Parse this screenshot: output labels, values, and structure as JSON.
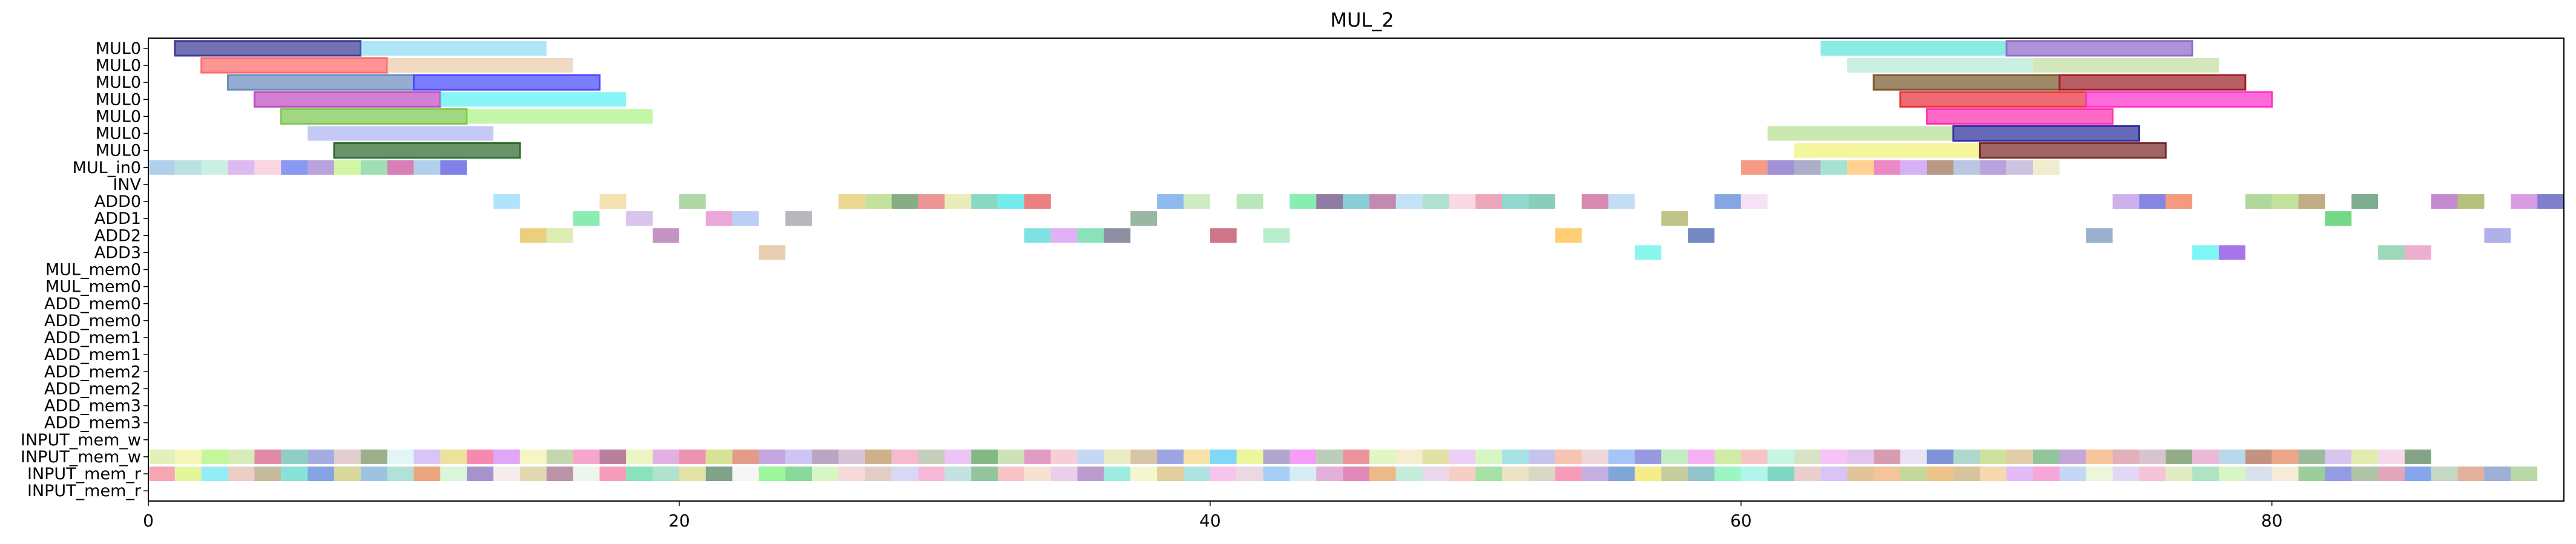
{
  "chart_data": {
    "type": "gantt",
    "title": "MUL_2",
    "xlim": [
      0,
      91
    ],
    "xticks": [
      0,
      20,
      40,
      60,
      80
    ],
    "rows": [
      "MUL0",
      "MUL0",
      "MUL0",
      "MUL0",
      "MUL0",
      "MUL0",
      "MUL0",
      "MUL_in0",
      "INV",
      "ADD0",
      "ADD1",
      "ADD2",
      "ADD3",
      "MUL_mem0",
      "MUL_mem0",
      "ADD_mem0",
      "ADD_mem0",
      "ADD_mem1",
      "ADD_mem1",
      "ADD_mem2",
      "ADD_mem2",
      "ADD_mem3",
      "ADD_mem3",
      "INPUT_mem_w",
      "INPUT_mem_w",
      "INPUT_mem_r",
      "INPUT_mem_r"
    ],
    "palette": [
      "#7fb3e0",
      "#a8e6cf",
      "#f4a6c1",
      "#ffd27f",
      "#b39ddb",
      "#80cbc4",
      "#e57373",
      "#aed581",
      "#90a4ae",
      "#ce93d8",
      "#ffab91",
      "#81d4fa",
      "#c5e1a5",
      "#f48fb1",
      "#9fa8da",
      "#dce775",
      "#4db6ac",
      "#ba68c8",
      "#ffcc80",
      "#a1887f"
    ],
    "bars": [
      {
        "row": 0,
        "start": 1,
        "end": 8,
        "color": "#3b3b98",
        "border": true
      },
      {
        "row": 0,
        "start": 8,
        "end": 15,
        "color": "#7ed6f0"
      },
      {
        "row": 0,
        "start": 63,
        "end": 70,
        "color": "#3fe0d0"
      },
      {
        "row": 0,
        "start": 70,
        "end": 77,
        "color": "#8e6bc9",
        "border": true
      },
      {
        "row": 1,
        "start": 2,
        "end": 9,
        "color": "#ff6b6b",
        "border": true
      },
      {
        "row": 1,
        "start": 9,
        "end": 16,
        "color": "#e8c39e"
      },
      {
        "row": 1,
        "start": 64,
        "end": 71,
        "color": "#a8e6cf"
      },
      {
        "row": 1,
        "start": 71,
        "end": 78,
        "color": "#b8d98f"
      },
      {
        "row": 2,
        "start": 3,
        "end": 10,
        "color": "#6c8ebf",
        "border": true
      },
      {
        "row": 2,
        "start": 10,
        "end": 17,
        "color": "#4b4bff",
        "border": true
      },
      {
        "row": 2,
        "start": 65,
        "end": 72,
        "color": "#7a5c2e",
        "border": true
      },
      {
        "row": 2,
        "start": 72,
        "end": 79,
        "color": "#a0202a",
        "border": true
      },
      {
        "row": 3,
        "start": 4,
        "end": 11,
        "color": "#c04fc0",
        "border": true
      },
      {
        "row": 3,
        "start": 11,
        "end": 18,
        "color": "#3ff0f0"
      },
      {
        "row": 3,
        "start": 66,
        "end": 73,
        "color": "#e8333a",
        "border": true
      },
      {
        "row": 3,
        "start": 73,
        "end": 80,
        "color": "#ff33cc",
        "border": true
      },
      {
        "row": 4,
        "start": 5,
        "end": 12,
        "color": "#7ec850",
        "border": true
      },
      {
        "row": 4,
        "start": 12,
        "end": 19,
        "color": "#9ef070"
      },
      {
        "row": 4,
        "start": 67,
        "end": 74,
        "color": "#ff2fb0",
        "border": true
      },
      {
        "row": 5,
        "start": 6,
        "end": 13,
        "color": "#a3a8f0"
      },
      {
        "row": 5,
        "start": 61,
        "end": 68,
        "color": "#a8dc80"
      },
      {
        "row": 5,
        "start": 68,
        "end": 75,
        "color": "#2e2e9e",
        "border": true
      },
      {
        "row": 6,
        "start": 7,
        "end": 14,
        "color": "#2e6b2e",
        "border": true
      },
      {
        "row": 6,
        "start": 62,
        "end": 69,
        "color": "#eef060"
      },
      {
        "row": 6,
        "start": 69,
        "end": 76,
        "color": "#7a2a2a",
        "border": true
      },
      {
        "row": 7,
        "start": 0,
        "end": 1,
        "color": "#7fb3e0"
      },
      {
        "row": 7,
        "start": 1,
        "end": 2,
        "color": "#8fd0d0"
      },
      {
        "row": 7,
        "start": 2,
        "end": 3,
        "color": "#a8e6cf"
      },
      {
        "row": 7,
        "start": 3,
        "end": 4,
        "color": "#c890e8"
      },
      {
        "row": 7,
        "start": 4,
        "end": 5,
        "color": "#f8bbd0"
      },
      {
        "row": 7,
        "start": 5,
        "end": 6,
        "color": "#3f5be8"
      },
      {
        "row": 7,
        "start": 6,
        "end": 7,
        "color": "#8e6bc9"
      },
      {
        "row": 7,
        "start": 7,
        "end": 8,
        "color": "#b8f070"
      },
      {
        "row": 7,
        "start": 8,
        "end": 9,
        "color": "#66cc88"
      },
      {
        "row": 7,
        "start": 9,
        "end": 10,
        "color": "#c0308a"
      },
      {
        "row": 7,
        "start": 10,
        "end": 11,
        "color": "#7fb3e0"
      },
      {
        "row": 7,
        "start": 11,
        "end": 12,
        "color": "#3333dd"
      },
      {
        "row": 7,
        "start": 60,
        "end": 61,
        "color": "#f0603a"
      },
      {
        "row": 7,
        "start": 61,
        "end": 62,
        "color": "#6a4ec0"
      },
      {
        "row": 7,
        "start": 62,
        "end": 63,
        "color": "#7a7aaa"
      },
      {
        "row": 7,
        "start": 63,
        "end": 64,
        "color": "#6fd0b8"
      },
      {
        "row": 7,
        "start": 64,
        "end": 65,
        "color": "#ffb74d"
      },
      {
        "row": 7,
        "start": 65,
        "end": 66,
        "color": "#e040a0"
      },
      {
        "row": 7,
        "start": 66,
        "end": 67,
        "color": "#c080f0"
      },
      {
        "row": 7,
        "start": 67,
        "end": 68,
        "color": "#8b5a3c"
      },
      {
        "row": 7,
        "start": 68,
        "end": 69,
        "color": "#90a4d0"
      },
      {
        "row": 7,
        "start": 69,
        "end": 70,
        "color": "#8e6bc9"
      },
      {
        "row": 7,
        "start": 70,
        "end": 71,
        "color": "#b0a0d0"
      },
      {
        "row": 7,
        "start": 71,
        "end": 72,
        "color": "#e6e0b0"
      },
      {
        "row": 9,
        "start": 26,
        "end": 27,
        "color": "#e0c050"
      },
      {
        "row": 9,
        "start": 27,
        "end": 28,
        "color": "#a0d060"
      },
      {
        "row": 9,
        "start": 28,
        "end": 29,
        "color": "#3c7a3c"
      },
      {
        "row": 9,
        "start": 29,
        "end": 30,
        "color": "#e05050"
      },
      {
        "row": 9,
        "start": 30,
        "end": 31,
        "color": "#e0e090"
      },
      {
        "row": 9,
        "start": 31,
        "end": 32,
        "color": "#40c0a0"
      },
      {
        "row": 9,
        "start": 32,
        "end": 33,
        "color": "#20e0e0"
      },
      {
        "row": 9,
        "start": 33,
        "end": 34,
        "color": "#e03030"
      },
      {
        "row": 9,
        "start": 13,
        "end": 14,
        "color": "#81d4fa"
      },
      {
        "row": 9,
        "start": 17,
        "end": 18,
        "color": "#ecd080"
      },
      {
        "row": 9,
        "start": 20,
        "end": 21,
        "color": "#7ec070"
      },
      {
        "row": 9,
        "start": 38,
        "end": 39,
        "color": "#4a90e0"
      },
      {
        "row": 9,
        "start": 39,
        "end": 40,
        "color": "#b0e0a0"
      },
      {
        "row": 9,
        "start": 41,
        "end": 42,
        "color": "#90d890"
      },
      {
        "row": 9,
        "start": 43,
        "end": 44,
        "color": "#40e080"
      },
      {
        "row": 9,
        "start": 44,
        "end": 45,
        "color": "#4a2a6a"
      },
      {
        "row": 9,
        "start": 45,
        "end": 46,
        "color": "#40b0c0"
      },
      {
        "row": 9,
        "start": 46,
        "end": 47,
        "color": "#a04080"
      },
      {
        "row": 9,
        "start": 47,
        "end": 48,
        "color": "#a0d0f0"
      },
      {
        "row": 9,
        "start": 48,
        "end": 49,
        "color": "#7ed0b0"
      },
      {
        "row": 9,
        "start": 49,
        "end": 50,
        "color": "#f8c0d0"
      },
      {
        "row": 9,
        "start": 50,
        "end": 51,
        "color": "#e07090"
      },
      {
        "row": 9,
        "start": 51,
        "end": 52,
        "color": "#50c0b0"
      },
      {
        "row": 9,
        "start": 52,
        "end": 53,
        "color": "#40b090"
      },
      {
        "row": 9,
        "start": 54,
        "end": 55,
        "color": "#c04080"
      },
      {
        "row": 9,
        "start": 55,
        "end": 56,
        "color": "#a0c8f0"
      },
      {
        "row": 9,
        "start": 59,
        "end": 60,
        "color": "#3a70d0"
      },
      {
        "row": 9,
        "start": 60,
        "end": 61,
        "color": "#f0d0f0"
      },
      {
        "row": 9,
        "start": 74,
        "end": 75,
        "color": "#b080e0"
      },
      {
        "row": 9,
        "start": 75,
        "end": 76,
        "color": "#3a3ad0"
      },
      {
        "row": 9,
        "start": 76,
        "end": 77,
        "color": "#f05a30"
      },
      {
        "row": 9,
        "start": 79,
        "end": 80,
        "color": "#80c060"
      },
      {
        "row": 9,
        "start": 80,
        "end": 81,
        "color": "#a0d060"
      },
      {
        "row": 9,
        "start": 81,
        "end": 82,
        "color": "#9a7a3a"
      },
      {
        "row": 9,
        "start": 83,
        "end": 84,
        "color": "#2e7a4a"
      },
      {
        "row": 9,
        "start": 86,
        "end": 87,
        "color": "#a040b0"
      },
      {
        "row": 9,
        "start": 87,
        "end": 88,
        "color": "#8a9a30"
      },
      {
        "row": 9,
        "start": 89,
        "end": 90,
        "color": "#c060d0"
      },
      {
        "row": 9,
        "start": 90,
        "end": 91,
        "color": "#3030b0"
      },
      {
        "row": 10,
        "start": 16,
        "end": 17,
        "color": "#40e080"
      },
      {
        "row": 10,
        "start": 18,
        "end": 19,
        "color": "#c0a0e0"
      },
      {
        "row": 10,
        "start": 21,
        "end": 22,
        "color": "#e070c0"
      },
      {
        "row": 10,
        "start": 22,
        "end": 23,
        "color": "#90b0f0"
      },
      {
        "row": 10,
        "start": 24,
        "end": 25,
        "color": "#8a8a9a"
      },
      {
        "row": 10,
        "start": 37,
        "end": 38,
        "color": "#5a8a6a"
      },
      {
        "row": 10,
        "start": 57,
        "end": 58,
        "color": "#9aa040"
      },
      {
        "row": 10,
        "start": 82,
        "end": 83,
        "color": "#20c040"
      },
      {
        "row": 11,
        "start": 14,
        "end": 15,
        "color": "#e0b030"
      },
      {
        "row": 11,
        "start": 15,
        "end": 16,
        "color": "#c8e080"
      },
      {
        "row": 11,
        "start": 19,
        "end": 20,
        "color": "#a050a0"
      },
      {
        "row": 11,
        "start": 33,
        "end": 34,
        "color": "#30d0d0"
      },
      {
        "row": 11,
        "start": 34,
        "end": 35,
        "color": "#d080f0"
      },
      {
        "row": 11,
        "start": 35,
        "end": 36,
        "color": "#40d090"
      },
      {
        "row": 11,
        "start": 36,
        "end": 37,
        "color": "#4a4a6a"
      },
      {
        "row": 11,
        "start": 40,
        "end": 41,
        "color": "#b02040"
      },
      {
        "row": 11,
        "start": 42,
        "end": 43,
        "color": "#90e0b0"
      },
      {
        "row": 11,
        "start": 53,
        "end": 54,
        "color": "#ffb020"
      },
      {
        "row": 11,
        "start": 58,
        "end": 59,
        "color": "#2040a0"
      },
      {
        "row": 11,
        "start": 73,
        "end": 74,
        "color": "#5a80b0"
      },
      {
        "row": 11,
        "start": 88,
        "end": 89,
        "color": "#8080e0"
      },
      {
        "row": 12,
        "start": 23,
        "end": 24,
        "color": "#d8b080"
      },
      {
        "row": 12,
        "start": 56,
        "end": 57,
        "color": "#40f0e0"
      },
      {
        "row": 12,
        "start": 77,
        "end": 78,
        "color": "#30f0f0"
      },
      {
        "row": 12,
        "start": 78,
        "end": 79,
        "color": "#7020e0"
      },
      {
        "row": 12,
        "start": 84,
        "end": 85,
        "color": "#60c090"
      },
      {
        "row": 12,
        "start": 85,
        "end": 86,
        "color": "#e080b0"
      }
    ],
    "input_w_colors": [
      "#d0e890",
      "#f0f090",
      "#a0f060",
      "#c0e090",
      "#d04070",
      "#4ab0a0",
      "#6a7ad0",
      "#d0b0b0",
      "#608040",
      "#d0f0f0",
      "#c0a0f0",
      "#e0d060",
      "#f04080",
      "#d070f0",
      "#f0f0a0",
      "#a0c080",
      "#f070b0",
      "#903060",
      "#e0f0a0",
      "#d080d0",
      "#e05080",
      "#c0d050",
      "#d06040",
      "#a070d0",
      "#b0a0f0",
      "#9070a0",
      "#c0a0c0",
      "#b08040",
      "#f090b0",
      "#a0b090",
      "#e0a0f0",
      "#3a8a3a",
      "#b0d090",
      "#d060a0",
      "#f0b0c0",
      "#a0c0f0",
      "#e0e0a0",
      "#c0a070",
      "#6070d0",
      "#f0d070",
      "#30c0f0",
      "#e0f060",
      "#8070b0",
      "#f060f0",
      "#90b090",
      "#e05060",
      "#d0f0a0",
      "#f0e0b0",
      "#d0d070",
      "#e0b0f0",
      "#c0f0a0",
      "#70d0d0",
      "#a0a0e0",
      "#f0a080",
      "#e0c0c0",
      "#70a0f0",
      "#5a5ad0",
      "#a0e0a0",
      "#f080f0",
      "#b0e070",
      "#f0a0a0",
      "#a0f0d0",
      "#c0d0a0",
      "#f0a0f0",
      "#d0a0e0",
      "#c06080",
      "#e0d0f0",
      "#3050c0",
      "#80c0b0",
      "#b0d060",
      "#d0b070",
      "#50a060",
      "#a070c0",
      "#f0a060",
      "#d08090",
      "#c0a0b0",
      "#507a40",
      "#e090c0",
      "#90c0e0",
      "#a05030",
      "#e07040",
      "#609060",
      "#c0a0e0",
      "#d0e080",
      "#f0c0e0",
      "#3a6a3a"
    ],
    "input_r_colors": [
      "#f07080",
      "#d0f060",
      "#50e0f0",
      "#e0b0a0",
      "#a09060",
      "#40d0c0",
      "#3a6ad0",
      "#c0c060",
      "#60a0d0",
      "#80d0c0",
      "#e07030",
      "#c0f0c0",
      "#7050b0",
      "#f0e0e0",
      "#d0c080",
      "#905070",
      "#e0f0e0",
      "#f06090",
      "#40d090",
      "#80d0b0",
      "#d0d070",
      "#306a40",
      "#f0f0f0",
      "#60f060",
      "#40c060",
      "#c0f0a0",
      "#f0c0c0",
      "#d0b0a0",
      "#c0c0f0",
      "#f090c0",
      "#a0d0d0",
      "#50a060",
      "#f0a0a0",
      "#f0d0b0",
      "#e0b0e0",
      "#9060b0",
      "#60e0d0",
      "#f0f0b0",
      "#d0b060",
      "#80d0d0",
      "#f0a0e0",
      "#e0c0d0",
      "#70b0f0",
      "#c0e0f0",
      "#d080c0",
      "#d04090",
      "#e09040",
      "#a0e0c0",
      "#e0c0e0",
      "#f0b0a0",
      "#70d070",
      "#e0d0a0",
      "#c0c0a0",
      "#f06090",
      "#a080d0",
      "#3070c0",
      "#f0e040",
      "#a0b060",
      "#50a0b0",
      "#60f0a0",
      "#80f0e0",
      "#30c0a0",
      "#e0b0b0",
      "#c0a0f0",
      "#d0a060",
      "#f0a060",
      "#a0c060",
      "#e0a040",
      "#c0a060",
      "#f0c080",
      "#d090f0",
      "#f070c0",
      "#a0c0f0",
      "#e0f0c0",
      "#d0c0f0",
      "#f0a0c0",
      "#d0e0a0",
      "#80d0a0",
      "#c0f0a0",
      "#c0d0e0",
      "#f0e0c0",
      "#60b060",
      "#5060d0",
      "#80a070",
      "#d07090",
      "#3a70e0",
      "#a0c0a0",
      "#d08060",
      "#6080c0",
      "#90c070"
    ]
  }
}
